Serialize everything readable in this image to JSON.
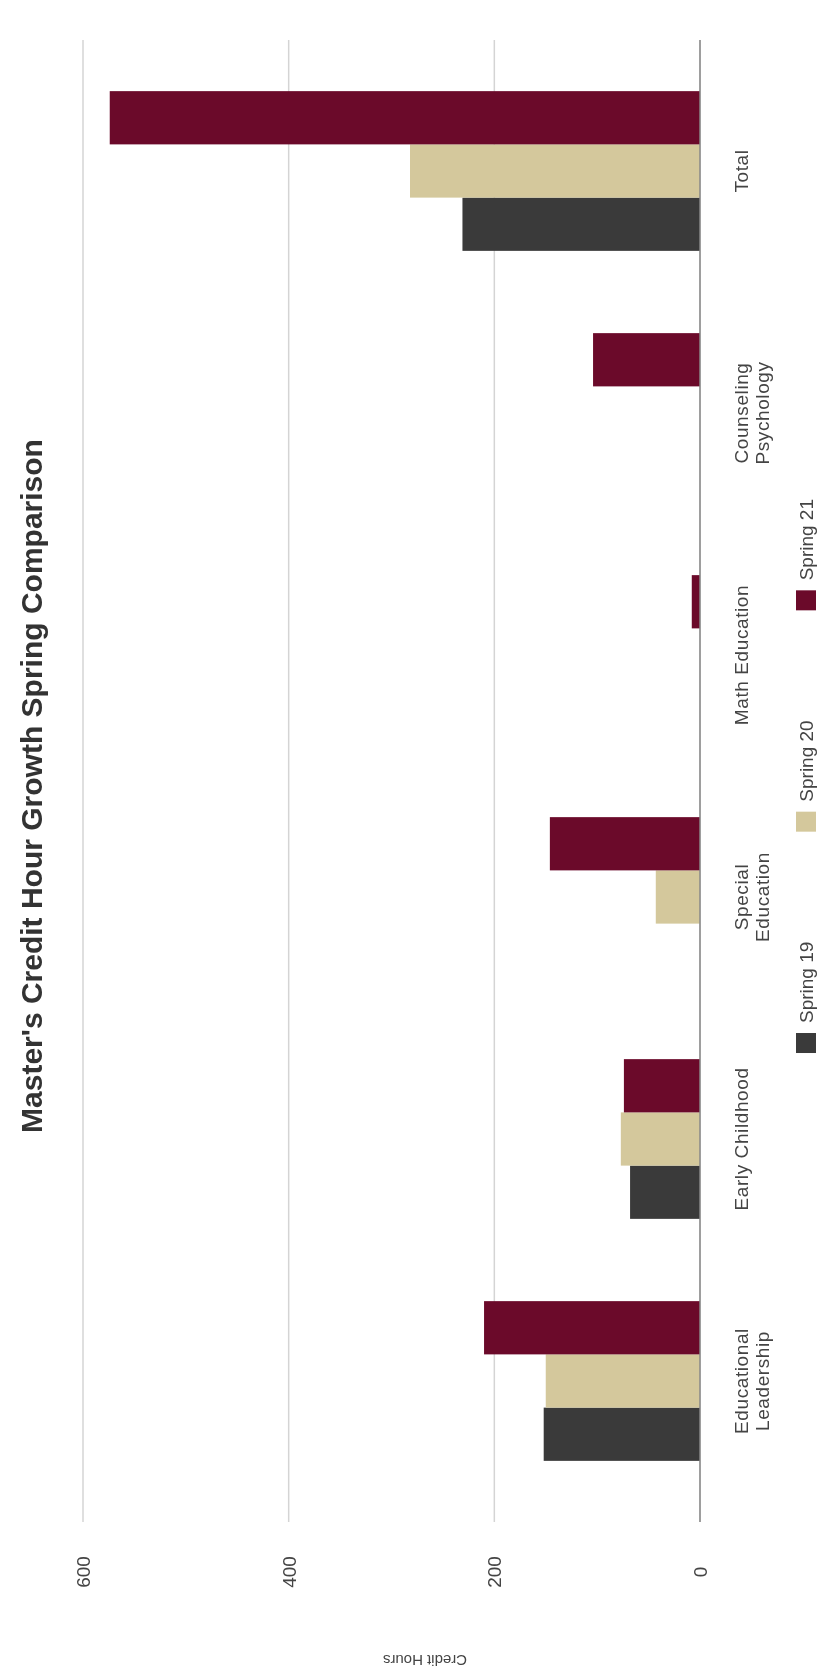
{
  "chart_data": {
    "type": "bar",
    "orientation": "horizontal",
    "title": "Master's Credit Hour Growth Spring Comparison",
    "xlabel": "Credit Hours",
    "categories": [
      "Total",
      "Counseling Psychology",
      "Math Education",
      "Special Education",
      "Early Childhood",
      "Educational Leadership"
    ],
    "series": [
      {
        "name": "Spring 19",
        "color": "#3a3a3a",
        "values": [
          231,
          null,
          null,
          null,
          68,
          152
        ]
      },
      {
        "name": "Spring 20",
        "color": "#d4c89c",
        "values": [
          282,
          null,
          null,
          43,
          77,
          150
        ]
      },
      {
        "name": "Spring 21",
        "color": "#6b0a2a",
        "values": [
          574,
          104,
          8,
          146,
          74,
          210
        ]
      }
    ],
    "xlim": [
      600,
      0
    ],
    "xticks": [
      600,
      400,
      200,
      0
    ],
    "grid": "x",
    "legend": "right"
  }
}
